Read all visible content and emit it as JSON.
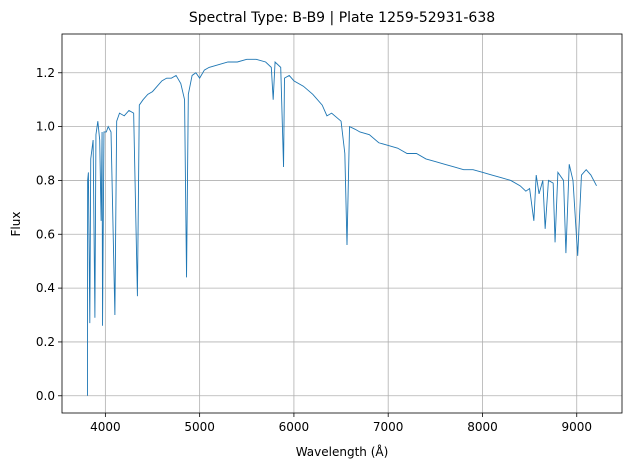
{
  "chart_data": {
    "type": "line",
    "title": "Spectral Type: B-B9 | Plate 1259-52931-638",
    "x_label": "Wavelength (Å)",
    "y_label": "Flux",
    "xlim": [
      3540,
      9480
    ],
    "xticks": [
      4000,
      5000,
      6000,
      7000,
      8000,
      9000
    ],
    "ylim": [
      -0.064,
      1.344
    ],
    "yticks": [
      {
        "value": 0,
        "label": "0.0"
      },
      0.2,
      0.4,
      0.6,
      0.8,
      {
        "value": 1,
        "label": "1.0"
      },
      1.2
    ],
    "grid": true,
    "x": [
      3810,
      3812,
      3820,
      3835,
      3845,
      3870,
      3889,
      3900,
      3920,
      3940,
      3955,
      3965,
      3970,
      3985,
      4010,
      4030,
      4060,
      4101,
      4120,
      4150,
      4200,
      4250,
      4300,
      4340,
      4360,
      4400,
      4450,
      4500,
      4550,
      4600,
      4650,
      4700,
      4750,
      4800,
      4840,
      4861,
      4880,
      4920,
      4960,
      5000,
      5050,
      5100,
      5200,
      5300,
      5400,
      5500,
      5600,
      5700,
      5760,
      5780,
      5800,
      5860,
      5890,
      5900,
      5950,
      6000,
      6100,
      6200,
      6300,
      6350,
      6400,
      6500,
      6540,
      6563,
      6590,
      6650,
      6700,
      6800,
      6900,
      7000,
      7100,
      7200,
      7300,
      7400,
      7500,
      7600,
      7700,
      7800,
      7900,
      8000,
      8100,
      8200,
      8300,
      8400,
      8460,
      8500,
      8545,
      8570,
      8600,
      8640,
      8665,
      8700,
      8750,
      8770,
      8800,
      8860,
      8885,
      8920,
      8960,
      9010,
      9050,
      9100,
      9150,
      9210
    ],
    "series": [
      {
        "color": "#1f77b4",
        "values": [
          0.0,
          0.8,
          0.83,
          0.27,
          0.88,
          0.95,
          0.29,
          0.97,
          1.02,
          0.95,
          0.65,
          0.98,
          0.26,
          0.98,
          0.98,
          1.0,
          0.98,
          0.3,
          1.02,
          1.05,
          1.04,
          1.06,
          1.05,
          0.37,
          1.08,
          1.1,
          1.12,
          1.13,
          1.15,
          1.17,
          1.18,
          1.18,
          1.19,
          1.16,
          1.1,
          0.44,
          1.12,
          1.19,
          1.2,
          1.18,
          1.21,
          1.22,
          1.23,
          1.24,
          1.24,
          1.25,
          1.25,
          1.24,
          1.22,
          1.1,
          1.24,
          1.22,
          0.85,
          1.18,
          1.19,
          1.17,
          1.15,
          1.12,
          1.08,
          1.04,
          1.05,
          1.02,
          0.9,
          0.56,
          1.0,
          0.99,
          0.98,
          0.97,
          0.94,
          0.93,
          0.92,
          0.9,
          0.9,
          0.88,
          0.87,
          0.86,
          0.85,
          0.84,
          0.84,
          0.83,
          0.82,
          0.81,
          0.8,
          0.78,
          0.76,
          0.77,
          0.65,
          0.82,
          0.75,
          0.8,
          0.62,
          0.8,
          0.79,
          0.57,
          0.83,
          0.8,
          0.53,
          0.86,
          0.8,
          0.52,
          0.82,
          0.84,
          0.82,
          0.78
        ]
      }
    ]
  }
}
